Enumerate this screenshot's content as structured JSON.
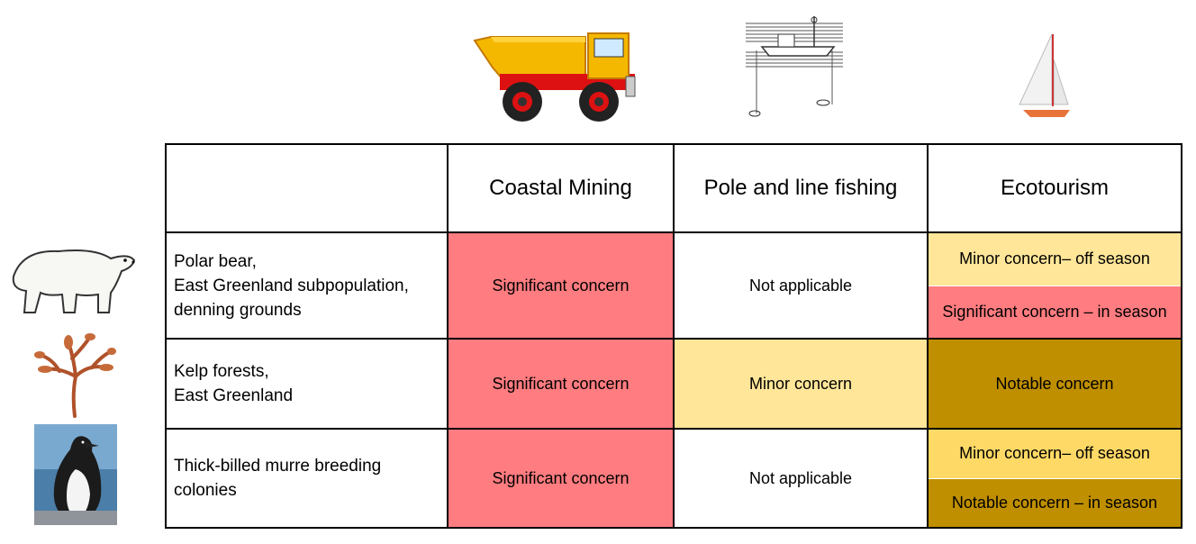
{
  "colors": {
    "significant": "#ff7c80",
    "minor": "#ffe699",
    "minor_alt": "#ffd966",
    "notable": "#bf8f00",
    "not_applicable": "#ffffff"
  },
  "columns": [
    {
      "label": "Coastal Mining",
      "icon": "dump-truck-icon"
    },
    {
      "label": "Pole and line fishing",
      "icon": "fishing-boat-icon"
    },
    {
      "label": "Ecotourism",
      "icon": "sailboat-icon"
    }
  ],
  "rows": [
    {
      "species": [
        "Polar bear,",
        "East Greenland subpopulation,",
        "denning grounds"
      ],
      "icon": "polar-bear-icon",
      "mining": "Significant concern",
      "fishing": "Not applicable",
      "ecotourism": [
        "Minor concern– off season",
        "Significant concern – in season"
      ]
    },
    {
      "species": [
        "Kelp forests,",
        "East Greenland"
      ],
      "icon": "kelp-icon",
      "mining": "Significant concern",
      "fishing": "Minor concern",
      "ecotourism": [
        "Notable concern"
      ]
    },
    {
      "species": [
        "Thick-billed murre breeding",
        "colonies"
      ],
      "icon": "murre-bird-icon",
      "mining": "Significant concern",
      "fishing": "Not applicable",
      "ecotourism": [
        "Minor concern– off season",
        "Notable concern – in season"
      ]
    }
  ]
}
